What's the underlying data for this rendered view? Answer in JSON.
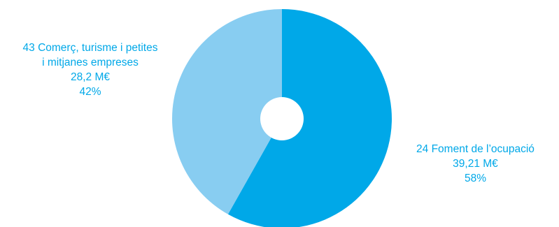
{
  "chart_data": {
    "type": "pie",
    "donut": true,
    "title": "",
    "series": [
      {
        "code": "24",
        "category": "Foment de l’ocupació",
        "value": 39.21,
        "value_label": "39,21 M€",
        "percent": 58,
        "percent_label": "58%",
        "label_line1": "24 Foment de l’ocupació",
        "color": "#00A8E8"
      },
      {
        "code": "43",
        "category": "Comerç, turisme i petites i mitjanes empreses",
        "value": 28.2,
        "value_label": "28,2 M€",
        "percent": 42,
        "percent_label": "42%",
        "label_line1": "43 Comerç, turisme i petites",
        "label_line2": "i mitjanes empreses",
        "color": "#88CDF1"
      }
    ]
  },
  "colors": {
    "label_text": "#00A8E8",
    "background": "#FFFFFF"
  }
}
